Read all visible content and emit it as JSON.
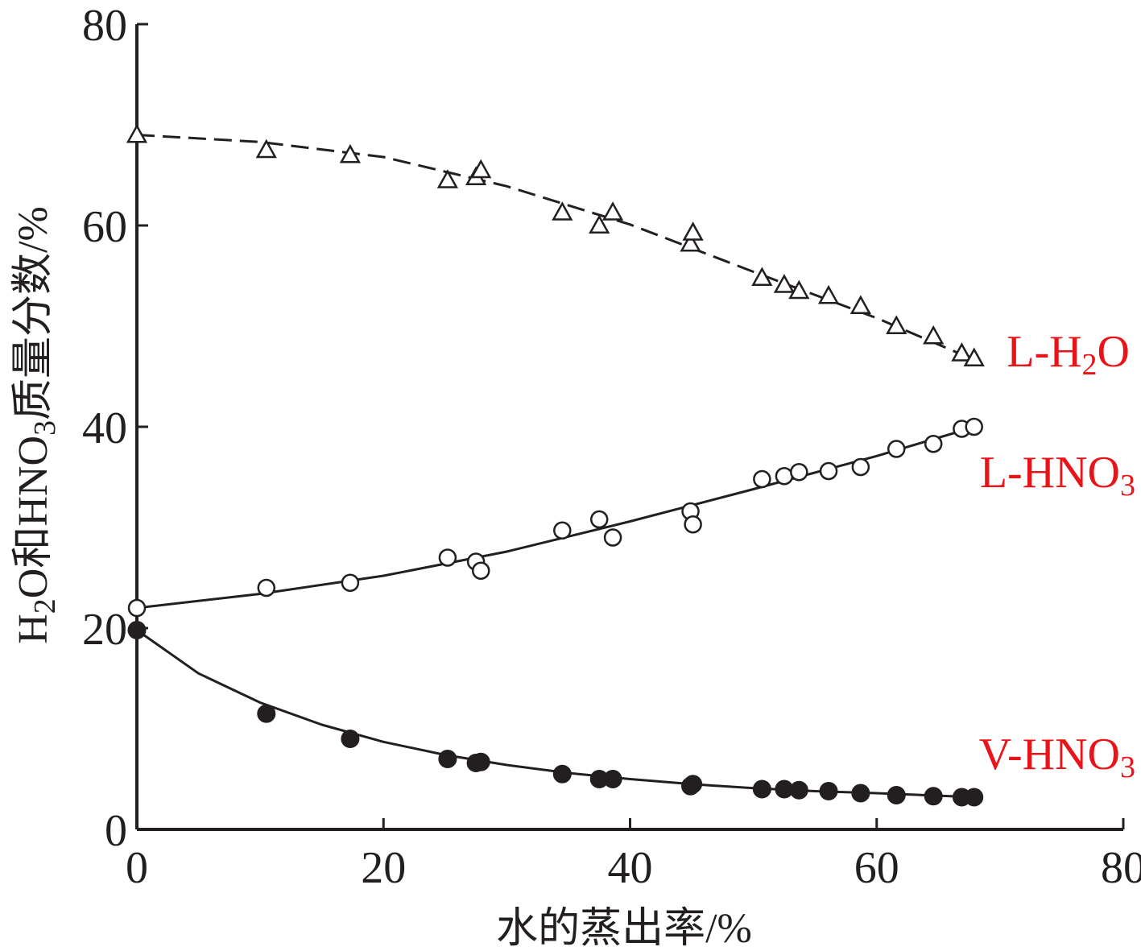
{
  "chart_data": {
    "type": "scatter",
    "xlabel": "水的蒸出率/%",
    "ylabel": {
      "pre": "H",
      "sub1": "2",
      "mid": "O和HNO",
      "sub2": "3",
      "post": "质量分数/%"
    },
    "xlim": [
      0,
      80
    ],
    "ylim": [
      0,
      80
    ],
    "x_ticks": [
      "0",
      "20",
      "40",
      "60",
      "80"
    ],
    "y_ticks": [
      "0",
      "20",
      "40",
      "60",
      "80"
    ],
    "grid": false,
    "series": [
      {
        "name": {
          "main": "L-H",
          "sub": "2",
          "post": "O"
        },
        "marker": "open-triangle",
        "line": "dashed",
        "color": "#231f20",
        "label_color": "#e8141a",
        "points": [
          [
            0,
            69
          ],
          [
            10.5,
            67.5
          ],
          [
            17.3,
            67
          ],
          [
            25.2,
            64.5
          ],
          [
            27.5,
            64.8
          ],
          [
            27.9,
            65.5
          ],
          [
            34.5,
            61.3
          ],
          [
            37.5,
            60
          ],
          [
            38.6,
            61.3
          ],
          [
            44.9,
            58.2
          ],
          [
            45.1,
            59.3
          ],
          [
            50.7,
            54.8
          ],
          [
            52.5,
            54.1
          ],
          [
            53.7,
            53.5
          ],
          [
            56.1,
            53
          ],
          [
            58.7,
            52
          ],
          [
            61.6,
            50
          ],
          [
            64.6,
            49
          ],
          [
            66.9,
            47.3
          ],
          [
            67.9,
            46.8
          ]
        ],
        "fit": [
          [
            0,
            69
          ],
          [
            10,
            68.3
          ],
          [
            20,
            66.8
          ],
          [
            30,
            63.9
          ],
          [
            40,
            60.1
          ],
          [
            50,
            55.4
          ],
          [
            60,
            50.8
          ],
          [
            68,
            46.6
          ]
        ]
      },
      {
        "name": {
          "main": "L-HNO",
          "sub": "3",
          "post": ""
        },
        "marker": "open-circle",
        "line": "solid",
        "color": "#231f20",
        "label_color": "#e8141a",
        "points": [
          [
            0,
            22
          ],
          [
            10.5,
            24
          ],
          [
            17.3,
            24.5
          ],
          [
            25.2,
            27
          ],
          [
            27.5,
            26.6
          ],
          [
            27.9,
            25.7
          ],
          [
            34.5,
            29.7
          ],
          [
            37.5,
            30.8
          ],
          [
            38.6,
            29
          ],
          [
            44.9,
            31.6
          ],
          [
            45.1,
            30.3
          ],
          [
            50.7,
            34.8
          ],
          [
            52.5,
            35.1
          ],
          [
            53.7,
            35.5
          ],
          [
            56.1,
            35.6
          ],
          [
            58.7,
            36
          ],
          [
            61.6,
            37.8
          ],
          [
            64.6,
            38.3
          ],
          [
            66.9,
            39.8
          ],
          [
            67.9,
            40
          ]
        ],
        "fit": [
          [
            0,
            22
          ],
          [
            10,
            23.4
          ],
          [
            20,
            25.2
          ],
          [
            30,
            27.6
          ],
          [
            40,
            30.6
          ],
          [
            50,
            33.8
          ],
          [
            60,
            37.1
          ],
          [
            68,
            40
          ]
        ]
      },
      {
        "name": {
          "main": "V-HNO",
          "sub": "3",
          "post": ""
        },
        "marker": "filled-circle",
        "line": "solid",
        "color": "#231f20",
        "label_color": "#e8141a",
        "points": [
          [
            0,
            19.8
          ],
          [
            10.5,
            11.5
          ],
          [
            17.3,
            9
          ],
          [
            25.2,
            7
          ],
          [
            27.5,
            6.6
          ],
          [
            27.9,
            6.7
          ],
          [
            34.5,
            5.5
          ],
          [
            37.5,
            5
          ],
          [
            38.6,
            5
          ],
          [
            44.9,
            4.3
          ],
          [
            45.1,
            4.5
          ],
          [
            50.7,
            4
          ],
          [
            52.5,
            4
          ],
          [
            53.7,
            3.9
          ],
          [
            56.1,
            3.8
          ],
          [
            58.7,
            3.6
          ],
          [
            61.6,
            3.4
          ],
          [
            64.6,
            3.3
          ],
          [
            66.9,
            3.2
          ],
          [
            67.9,
            3.2
          ]
        ],
        "fit": [
          [
            0,
            19.8
          ],
          [
            5,
            15.5
          ],
          [
            10,
            12.6
          ],
          [
            15,
            10.4
          ],
          [
            20,
            8.7
          ],
          [
            25,
            7.4
          ],
          [
            30,
            6.4
          ],
          [
            35,
            5.6
          ],
          [
            40,
            5
          ],
          [
            45,
            4.5
          ],
          [
            50,
            4.1
          ],
          [
            55,
            3.8
          ],
          [
            60,
            3.6
          ],
          [
            68,
            3.2
          ]
        ]
      }
    ]
  }
}
